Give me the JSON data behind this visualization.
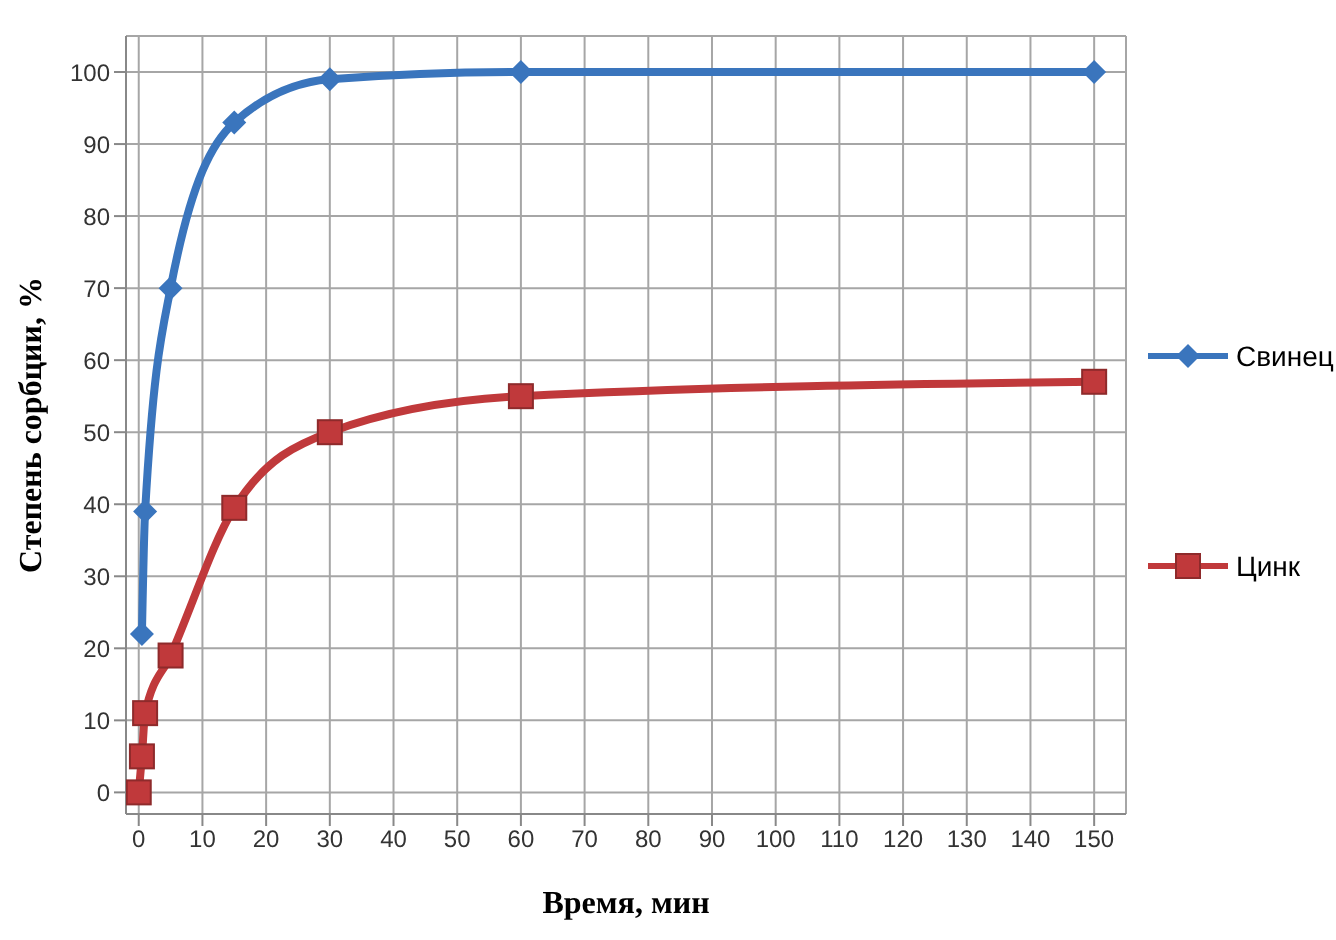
{
  "chart_data": {
    "type": "line",
    "xlabel": "Время, мин",
    "ylabel": "Степень сорбции, %",
    "xlim": [
      -2,
      155
    ],
    "xticks": [
      0,
      10,
      20,
      30,
      40,
      50,
      60,
      70,
      80,
      90,
      100,
      110,
      120,
      130,
      140,
      150
    ],
    "ylim": [
      -3,
      105
    ],
    "yticks": [
      0,
      10,
      20,
      30,
      40,
      50,
      60,
      70,
      80,
      90,
      100
    ],
    "grid": true,
    "legend": "right",
    "series": [
      {
        "name": "Свинец",
        "color": "#3a75bd",
        "marker": "diamond",
        "x": [
          0.5,
          1,
          5,
          15,
          30,
          60,
          150
        ],
        "values": [
          22,
          39,
          70,
          93,
          99,
          100,
          100
        ]
      },
      {
        "name": "Цинк",
        "color": "#c0393b",
        "marker": "square",
        "x": [
          0,
          0.5,
          1,
          5,
          15,
          30,
          60,
          150
        ],
        "values": [
          0,
          5,
          11,
          19,
          39.5,
          50,
          55,
          57
        ]
      }
    ]
  }
}
